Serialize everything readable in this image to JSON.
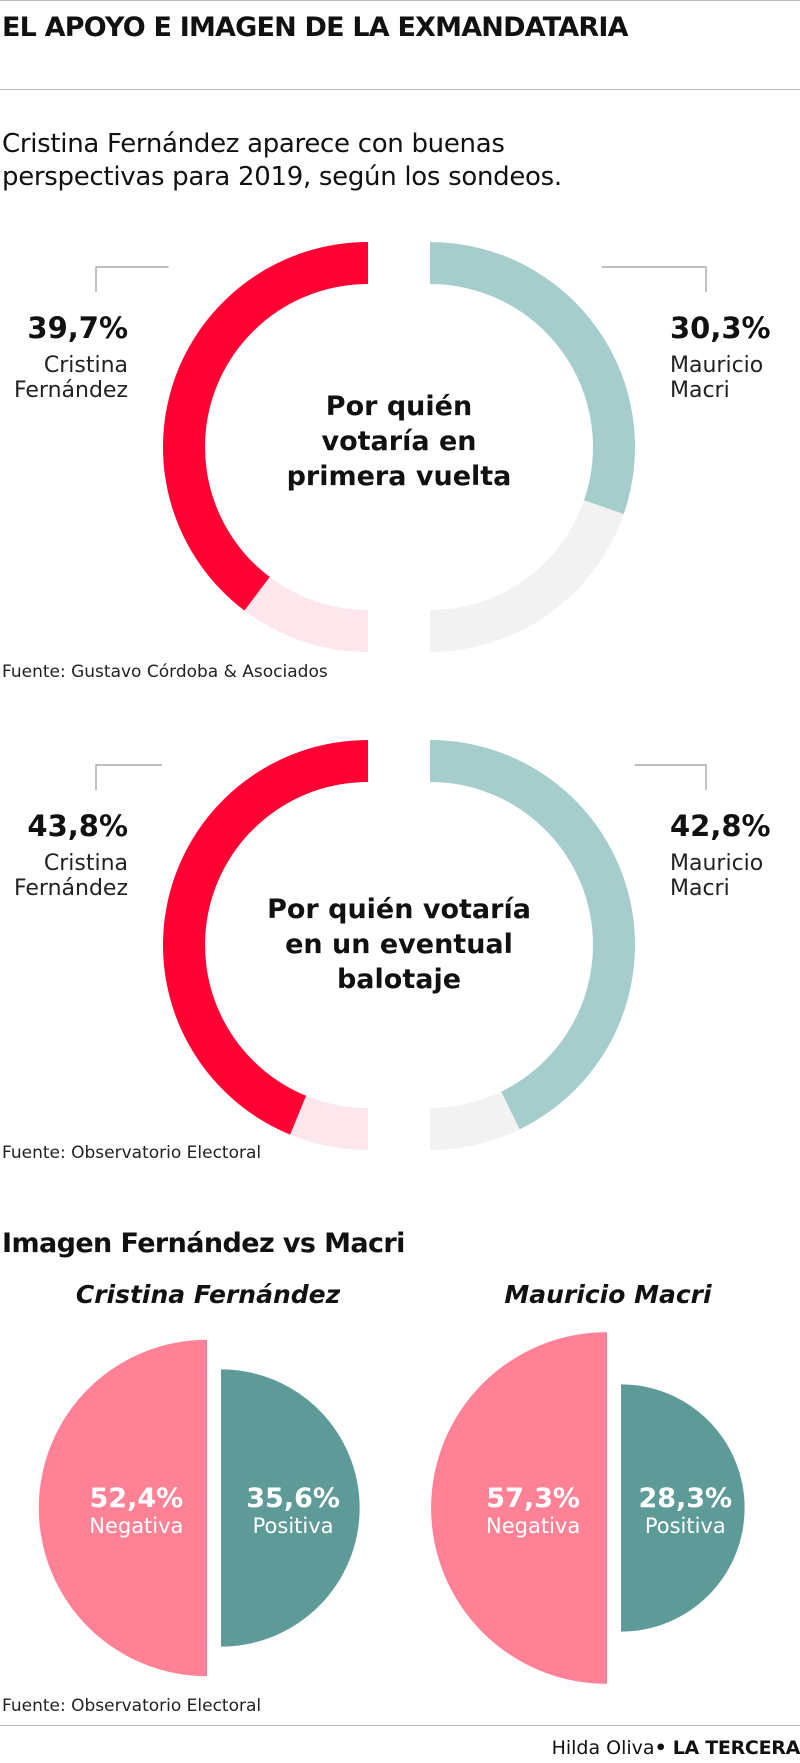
{
  "header": {
    "title": "EL APOYO E IMAGEN DE LA EXMANDATARIA",
    "subtitle": "Cristina Fernández aparece con buenas perspectivas para 2019, según los sondeos."
  },
  "colors": {
    "fernandez": "#ff0233",
    "fernandez_track": "#fde6ec",
    "macri": "#a5cdcc",
    "macri_track": "#f2f2f2",
    "negativa": "#ff8196",
    "positiva": "#5e9b98"
  },
  "chart_data": [
    {
      "type": "pie",
      "title": "Por quién votaría en primera vuelta",
      "title_lines": [
        "Por quién",
        "votaría en",
        "primera vuelta"
      ],
      "series": [
        {
          "name": "Cristina Fernández",
          "name_lines": [
            "Cristina",
            "Fernández"
          ],
          "value": 39.7,
          "label": "39,7%"
        },
        {
          "name": "Mauricio Macri",
          "name_lines": [
            "Mauricio",
            "Macri"
          ],
          "value": 30.3,
          "label": "30,3%"
        }
      ],
      "source": "Fuente: Gustavo Córdoba & Asociados"
    },
    {
      "type": "pie",
      "title": "Por quién votaría en un eventual balotaje",
      "title_lines": [
        "Por quién votaría",
        "en un eventual",
        "balotaje"
      ],
      "series": [
        {
          "name": "Cristina Fernández",
          "name_lines": [
            "Cristina",
            "Fernández"
          ],
          "value": 43.8,
          "label": "43,8%"
        },
        {
          "name": "Mauricio Macri",
          "name_lines": [
            "Mauricio",
            "Macri"
          ],
          "value": 42.8,
          "label": "42,8%"
        }
      ],
      "source": "Fuente: Observatorio Electoral"
    },
    {
      "type": "pie",
      "title": "Imagen Fernández vs Macri",
      "panels": [
        {
          "name": "Cristina Fernández",
          "negativa": {
            "value": 52.4,
            "label": "52,4%",
            "name": "Negativa"
          },
          "positiva": {
            "value": 35.6,
            "label": "35,6%",
            "name": "Positiva"
          }
        },
        {
          "name": "Mauricio Macri",
          "negativa": {
            "value": 57.3,
            "label": "57,3%",
            "name": "Negativa"
          },
          "positiva": {
            "value": 28.3,
            "label": "28,3%",
            "name": "Positiva"
          }
        }
      ],
      "source": "Fuente: Observatorio Electoral"
    }
  ],
  "footer": {
    "author": "Hilda Oliva",
    "publication": "• LA TERCERA"
  }
}
